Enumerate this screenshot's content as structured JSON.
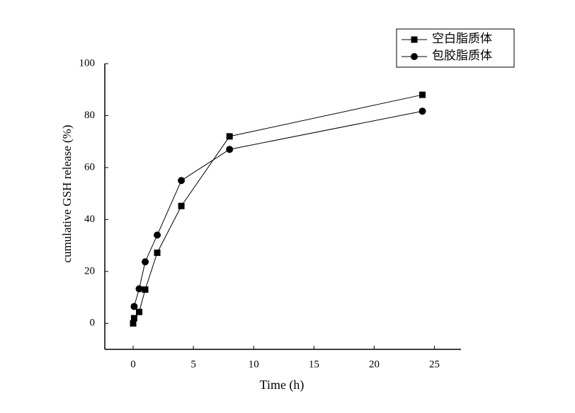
{
  "chart_data": {
    "type": "line",
    "x_label": "Time (h)",
    "y_label": "cumulative GSH release (%)",
    "xlim": [
      -2.35,
      27.2
    ],
    "xticks": [
      0,
      5,
      10,
      15,
      20,
      25
    ],
    "ylim": [
      -10,
      100
    ],
    "yticks": [
      0,
      20,
      40,
      60,
      80,
      100
    ],
    "legend": "upper right",
    "series": [
      {
        "name": "空白脂质体",
        "color": "#000000",
        "marker": "square",
        "x": [
          0,
          0.083,
          0.5,
          1,
          2,
          4,
          8,
          24
        ],
        "values": [
          0,
          2,
          4.4,
          13,
          27.2,
          45.2,
          72,
          88
        ]
      },
      {
        "name": "包胶脂质体",
        "color": "#000000",
        "marker": "circle",
        "x": [
          0.083,
          0.5,
          1,
          2,
          4,
          8,
          24
        ],
        "values": [
          6.5,
          13.3,
          23.7,
          34,
          55,
          67,
          81.7
        ]
      }
    ]
  }
}
